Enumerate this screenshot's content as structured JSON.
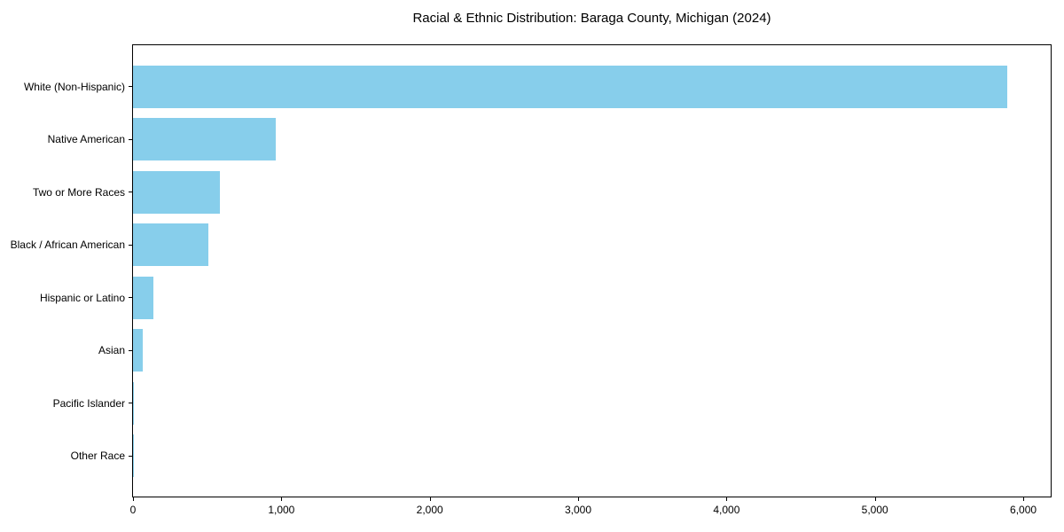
{
  "chart_data": {
    "type": "bar",
    "orientation": "horizontal",
    "title": "Racial & Ethnic Distribution: Baraga County, Michigan (2024)",
    "categories": [
      "White (Non-Hispanic)",
      "Native American",
      "Two or More Races",
      "Black / African American",
      "Hispanic or Latino",
      "Asian",
      "Pacific Islander",
      "Other Race"
    ],
    "values": [
      5890,
      960,
      585,
      510,
      136,
      66,
      5,
      2
    ],
    "xlabel": "",
    "ylabel": "",
    "xlim": [
      0,
      6185
    ],
    "x_ticks": [
      0,
      1000,
      2000,
      3000,
      4000,
      5000,
      6000
    ],
    "x_tick_labels": [
      "0",
      "1,000",
      "2,000",
      "3,000",
      "4,000",
      "5,000",
      "6,000"
    ],
    "grid": false,
    "legend": null,
    "colors": {
      "bar": "#87CEEB",
      "axis": "#000000",
      "background": "#FFFFFF",
      "text": "#000000"
    }
  }
}
